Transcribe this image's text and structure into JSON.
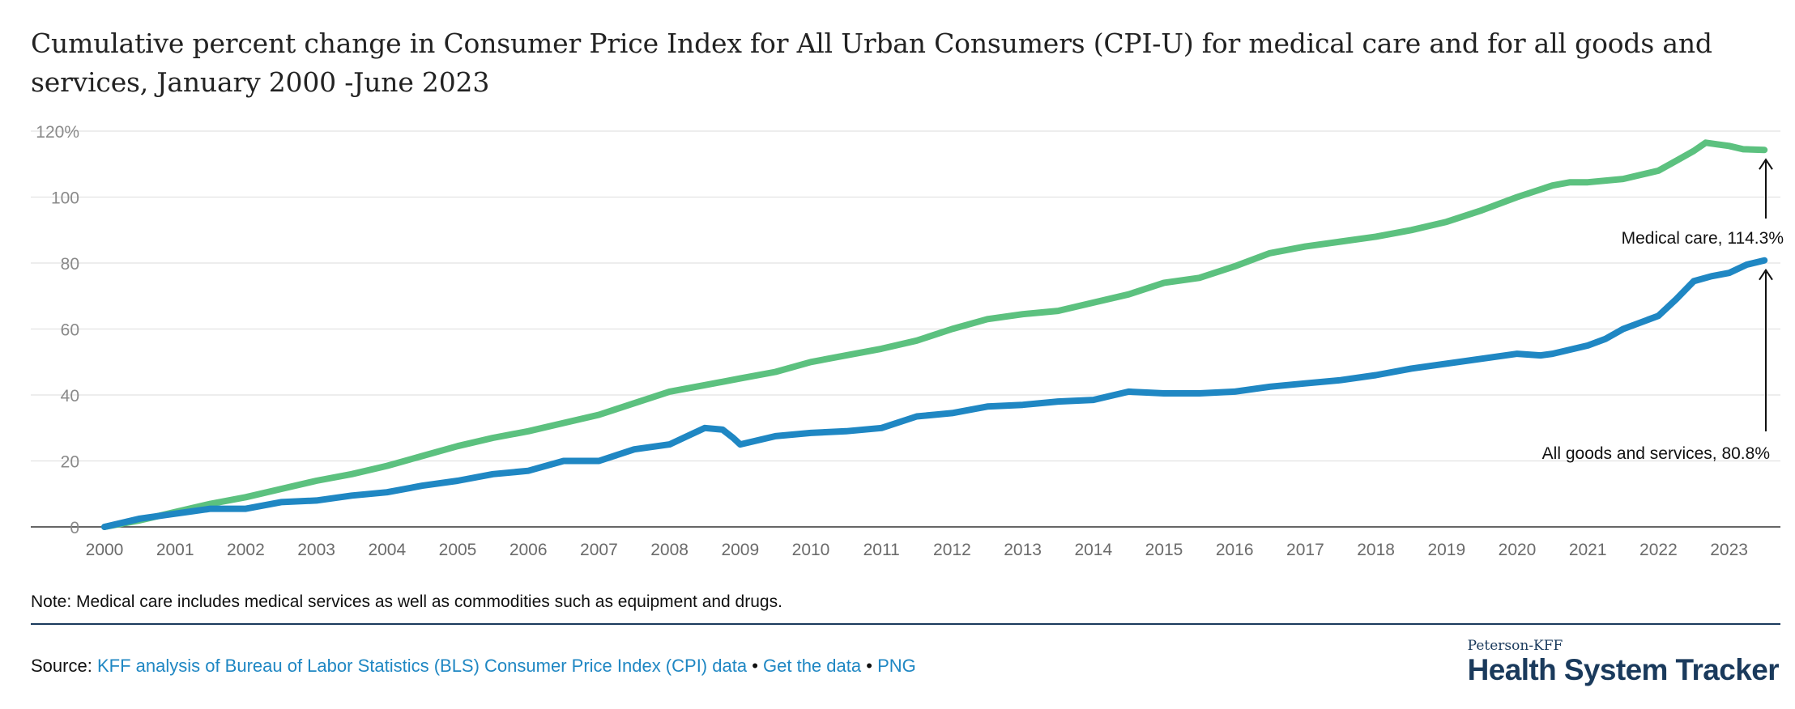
{
  "page": {
    "title": "Cumulative percent change in Consumer Price Index for All Urban Consumers (CPI-U) for medical care and for all goods and services, January 2000 -June 2023",
    "note": "Note: Medical care includes medical services as well as commodities such as equipment and drugs.",
    "source_prefix": "Source:",
    "source_link": "KFF analysis of Bureau of Labor Statistics (BLS) Consumer Price Index (CPI) data",
    "separator": "•",
    "get_data_link": "Get the data",
    "png_link": "PNG",
    "brand_top": "Peterson-KFF",
    "brand_main": "Health System Tracker"
  },
  "chart_data": {
    "type": "line",
    "title": "Cumulative percent change in Consumer Price Index for All Urban Consumers (CPI-U) for medical care and for all goods and services, January 2000 -June 2023",
    "xlabel": "",
    "ylabel": "",
    "xlim": [
      2000,
      2023.5
    ],
    "ylim": [
      0,
      120
    ],
    "grid": true,
    "legend": "none",
    "x_ticks": [
      "2000",
      "2001",
      "2002",
      "2003",
      "2004",
      "2005",
      "2006",
      "2007",
      "2008",
      "2009",
      "2010",
      "2011",
      "2012",
      "2013",
      "2014",
      "2015",
      "2016",
      "2017",
      "2018",
      "2019",
      "2020",
      "2021",
      "2022",
      "2023"
    ],
    "y_ticks": [
      "0",
      "20",
      "40",
      "60",
      "80",
      "100",
      "120%"
    ],
    "series": [
      {
        "key": "medical",
        "color": "#5cc17f",
        "x": [
          2000,
          2000.5,
          2001,
          2001.5,
          2002,
          2002.5,
          2003,
          2003.5,
          2004,
          2004.5,
          2005,
          2005.5,
          2006,
          2006.5,
          2007,
          2007.5,
          2008,
          2008.5,
          2009,
          2009.5,
          2010,
          2010.5,
          2011,
          2011.5,
          2012,
          2012.5,
          2013,
          2013.5,
          2014,
          2014.5,
          2015,
          2015.5,
          2016,
          2016.5,
          2017,
          2017.5,
          2018,
          2018.5,
          2019,
          2019.5,
          2020,
          2020.5,
          2020.75,
          2021,
          2021.5,
          2022,
          2022.25,
          2022.5,
          2022.67,
          2022.83,
          2023,
          2023.2,
          2023.5
        ],
        "y": [
          0,
          2,
          4.5,
          7,
          9,
          11.5,
          14,
          16,
          18.5,
          21.5,
          24.5,
          27,
          29,
          31.5,
          34,
          37.5,
          41,
          43,
          45,
          47,
          50,
          52,
          54,
          56.5,
          60,
          63,
          64.5,
          65.5,
          68,
          70.5,
          74,
          75.5,
          79,
          83,
          85,
          86.5,
          88,
          90,
          92.5,
          96,
          100,
          103.5,
          104.5,
          104.5,
          105.5,
          108,
          111,
          114,
          116.5,
          116,
          115.5,
          114.5,
          114.3
        ]
      },
      {
        "key": "all",
        "color": "#1f87c3",
        "x": [
          2000,
          2000.5,
          2001,
          2001.5,
          2002,
          2002.5,
          2003,
          2003.5,
          2004,
          2004.5,
          2005,
          2005.5,
          2006,
          2006.5,
          2007,
          2007.5,
          2008,
          2008.25,
          2008.5,
          2008.75,
          2008.9,
          2009,
          2009.5,
          2010,
          2010.5,
          2011,
          2011.5,
          2012,
          2012.5,
          2013,
          2013.5,
          2014,
          2014.5,
          2015,
          2015.5,
          2016,
          2016.5,
          2017,
          2017.5,
          2018,
          2018.5,
          2019,
          2019.5,
          2020,
          2020.33,
          2020.5,
          2021,
          2021.25,
          2021.5,
          2022,
          2022.25,
          2022.5,
          2022.75,
          2023,
          2023.25,
          2023.5
        ],
        "y": [
          0,
          2.5,
          4,
          5.5,
          5.5,
          7.5,
          8,
          9.5,
          10.5,
          12.5,
          14,
          16,
          17,
          20,
          20,
          23.5,
          25,
          27.5,
          30,
          29.5,
          27,
          25,
          27.5,
          28.5,
          29,
          30,
          33.5,
          34.5,
          36.5,
          37,
          38,
          38.5,
          41,
          40.5,
          40.5,
          41,
          42.5,
          43.5,
          44.5,
          46,
          48,
          49.5,
          51,
          52.5,
          52,
          52.5,
          55,
          57,
          60,
          64,
          69,
          74.5,
          76,
          77,
          79.5,
          80.8
        ]
      }
    ],
    "annotations": [
      {
        "text": "Medical care, 114.3%"
      },
      {
        "text": "All goods and services, 80.8%"
      }
    ]
  }
}
